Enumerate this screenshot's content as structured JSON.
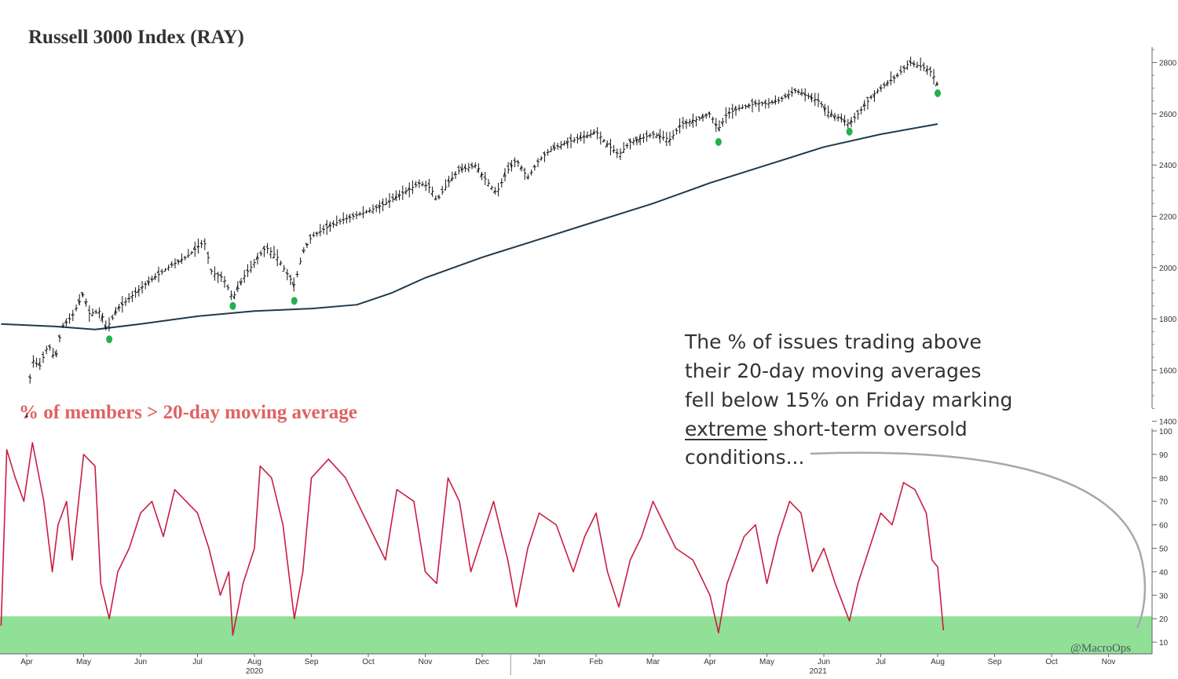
{
  "chart_data": [
    {
      "type": "line",
      "subtype": "ohlc-bars-with-moving-average",
      "title": "Russell 3000 Index (RAY)",
      "y_axis": {
        "ticks": [
          1400,
          1600,
          1800,
          2000,
          2200,
          2400,
          2600,
          2800
        ],
        "ylim": [
          1390,
          2860
        ],
        "side": "right"
      },
      "x_axis": {
        "months": [
          "Apr",
          "May",
          "Jun",
          "Jul",
          "Aug",
          "Sep",
          "Oct",
          "Nov",
          "Dec",
          "Jan",
          "Feb",
          "Mar",
          "Apr",
          "May",
          "Jun",
          "Jul",
          "Aug",
          "Sep",
          "Oct",
          "Nov"
        ],
        "years": [
          {
            "label": "2020"
          },
          {
            "label": "2021"
          }
        ]
      },
      "series": [
        {
          "role": "price",
          "color": "#111111",
          "points": [
            [
              0,
              1420
            ],
            [
              0.05,
              1560
            ],
            [
              0.12,
              1640
            ],
            [
              0.22,
              1610
            ],
            [
              0.38,
              1700
            ],
            [
              0.5,
              1640
            ],
            [
              0.62,
              1770
            ],
            [
              0.8,
              1810
            ],
            [
              1.0,
              1900
            ],
            [
              1.1,
              1820
            ],
            [
              1.3,
              1830
            ],
            [
              1.4,
              1760
            ],
            [
              1.6,
              1840
            ],
            [
              1.8,
              1880
            ],
            [
              2.0,
              1920
            ],
            [
              2.3,
              1970
            ],
            [
              2.55,
              2010
            ],
            [
              2.8,
              2040
            ],
            [
              3.0,
              2080
            ],
            [
              3.12,
              2100
            ],
            [
              3.25,
              1980
            ],
            [
              3.45,
              1960
            ],
            [
              3.62,
              1880
            ],
            [
              3.8,
              1960
            ],
            [
              4.0,
              2020
            ],
            [
              4.2,
              2080
            ],
            [
              4.4,
              2040
            ],
            [
              4.7,
              1930
            ],
            [
              4.85,
              2060
            ],
            [
              5.0,
              2120
            ],
            [
              5.3,
              2160
            ],
            [
              5.6,
              2190
            ],
            [
              6.0,
              2220
            ],
            [
              6.3,
              2250
            ],
            [
              6.6,
              2290
            ],
            [
              6.9,
              2330
            ],
            [
              7.1,
              2310
            ],
            [
              7.2,
              2260
            ],
            [
              7.4,
              2330
            ],
            [
              7.6,
              2380
            ],
            [
              7.9,
              2400
            ],
            [
              8.0,
              2360
            ],
            [
              8.25,
              2290
            ],
            [
              8.45,
              2380
            ],
            [
              8.6,
              2420
            ],
            [
              8.8,
              2350
            ],
            [
              9.0,
              2420
            ],
            [
              9.2,
              2460
            ],
            [
              9.5,
              2490
            ],
            [
              9.8,
              2510
            ],
            [
              10.0,
              2530
            ],
            [
              10.2,
              2480
            ],
            [
              10.4,
              2440
            ],
            [
              10.6,
              2490
            ],
            [
              11.0,
              2520
            ],
            [
              11.3,
              2500
            ],
            [
              11.5,
              2560
            ],
            [
              11.8,
              2580
            ],
            [
              12.0,
              2600
            ],
            [
              12.15,
              2540
            ],
            [
              12.3,
              2600
            ],
            [
              12.5,
              2620
            ],
            [
              12.8,
              2640
            ],
            [
              13.0,
              2640
            ],
            [
              13.2,
              2650
            ],
            [
              13.5,
              2690
            ],
            [
              13.7,
              2670
            ],
            [
              13.9,
              2650
            ],
            [
              14.1,
              2600
            ],
            [
              14.3,
              2580
            ],
            [
              14.45,
              2560
            ],
            [
              14.6,
              2600
            ],
            [
              14.85,
              2670
            ],
            [
              15.0,
              2700
            ],
            [
              15.3,
              2750
            ],
            [
              15.5,
              2800
            ],
            [
              15.75,
              2780
            ],
            [
              15.9,
              2760
            ],
            [
              16.0,
              2710
            ]
          ],
          "low_markers": [
            [
              1.45,
              1720
            ],
            [
              3.62,
              1850
            ],
            [
              4.7,
              1870
            ],
            [
              12.15,
              2490
            ],
            [
              14.45,
              2530
            ],
            [
              16.0,
              2680
            ]
          ]
        },
        {
          "role": "long-moving-average",
          "color": "#1f3a4d",
          "points": [
            [
              -0.45,
              1780
            ],
            [
              0.5,
              1770
            ],
            [
              1.2,
              1758
            ],
            [
              2.0,
              1780
            ],
            [
              3.0,
              1810
            ],
            [
              4.0,
              1830
            ],
            [
              5.0,
              1840
            ],
            [
              5.8,
              1855
            ],
            [
              6.4,
              1900
            ],
            [
              7.0,
              1960
            ],
            [
              8.0,
              2040
            ],
            [
              9.0,
              2110
            ],
            [
              10.0,
              2180
            ],
            [
              11.0,
              2250
            ],
            [
              12.0,
              2330
            ],
            [
              13.0,
              2400
            ],
            [
              14.0,
              2470
            ],
            [
              15.0,
              2520
            ],
            [
              16.0,
              2560
            ]
          ]
        }
      ]
    },
    {
      "type": "line",
      "title": "% of members > 20-day moving average",
      "y_axis": {
        "ticks": [
          10,
          20,
          30,
          40,
          50,
          60,
          70,
          80,
          90,
          100
        ],
        "ylim": [
          5,
          101
        ],
        "side": "right"
      },
      "threshold_band": {
        "from": 5,
        "to": 21,
        "color": "#90e098"
      },
      "series": [
        {
          "color": "#c81e44",
          "points": [
            [
              -0.45,
              17
            ],
            [
              -0.35,
              92
            ],
            [
              -0.2,
              80
            ],
            [
              -0.05,
              70
            ],
            [
              0.1,
              95
            ],
            [
              0.3,
              70
            ],
            [
              0.45,
              40
            ],
            [
              0.55,
              60
            ],
            [
              0.7,
              70
            ],
            [
              0.8,
              45
            ],
            [
              1.0,
              90
            ],
            [
              1.2,
              85
            ],
            [
              1.3,
              35
            ],
            [
              1.45,
              20
            ],
            [
              1.6,
              40
            ],
            [
              1.8,
              50
            ],
            [
              2.0,
              65
            ],
            [
              2.2,
              70
            ],
            [
              2.4,
              55
            ],
            [
              2.6,
              75
            ],
            [
              2.8,
              70
            ],
            [
              3.0,
              65
            ],
            [
              3.2,
              50
            ],
            [
              3.4,
              30
            ],
            [
              3.55,
              40
            ],
            [
              3.62,
              13
            ],
            [
              3.8,
              35
            ],
            [
              4.0,
              50
            ],
            [
              4.1,
              85
            ],
            [
              4.3,
              80
            ],
            [
              4.5,
              60
            ],
            [
              4.7,
              20
            ],
            [
              4.85,
              40
            ],
            [
              5.0,
              80
            ],
            [
              5.3,
              88
            ],
            [
              5.6,
              80
            ],
            [
              5.8,
              70
            ],
            [
              6.0,
              60
            ],
            [
              6.3,
              45
            ],
            [
              6.5,
              75
            ],
            [
              6.8,
              70
            ],
            [
              7.0,
              40
            ],
            [
              7.2,
              35
            ],
            [
              7.4,
              80
            ],
            [
              7.6,
              70
            ],
            [
              7.8,
              40
            ],
            [
              8.0,
              55
            ],
            [
              8.2,
              70
            ],
            [
              8.45,
              45
            ],
            [
              8.6,
              25
            ],
            [
              8.8,
              50
            ],
            [
              9.0,
              65
            ],
            [
              9.3,
              60
            ],
            [
              9.6,
              40
            ],
            [
              9.8,
              55
            ],
            [
              10.0,
              65
            ],
            [
              10.2,
              40
            ],
            [
              10.4,
              25
            ],
            [
              10.6,
              45
            ],
            [
              10.8,
              55
            ],
            [
              11.0,
              70
            ],
            [
              11.2,
              60
            ],
            [
              11.4,
              50
            ],
            [
              11.7,
              45
            ],
            [
              12.0,
              30
            ],
            [
              12.15,
              14
            ],
            [
              12.3,
              35
            ],
            [
              12.6,
              55
            ],
            [
              12.8,
              60
            ],
            [
              13.0,
              35
            ],
            [
              13.2,
              55
            ],
            [
              13.4,
              70
            ],
            [
              13.6,
              65
            ],
            [
              13.8,
              40
            ],
            [
              14.0,
              50
            ],
            [
              14.2,
              35
            ],
            [
              14.45,
              19
            ],
            [
              14.6,
              35
            ],
            [
              14.8,
              50
            ],
            [
              15.0,
              65
            ],
            [
              15.2,
              60
            ],
            [
              15.4,
              78
            ],
            [
              15.6,
              75
            ],
            [
              15.8,
              65
            ],
            [
              15.9,
              45
            ],
            [
              16.0,
              42
            ],
            [
              16.1,
              15
            ]
          ]
        }
      ]
    }
  ],
  "annotation": {
    "lines": [
      "The % of issues trading above",
      "their 20-day moving averages",
      "fell below 15% on Friday marking",
      "extreme short-term oversold",
      "conditions..."
    ],
    "underlined_word": "extreme",
    "arrow_color": "#a8a8a8"
  },
  "credit": "@MacroOps",
  "colors": {
    "price_bars": "#111111",
    "moving_average": "#1f3a4d",
    "low_markers": "#22b24c",
    "breadth_line": "#c81e44",
    "breadth_title": "#e06262",
    "oversold_band": "#90e098"
  }
}
